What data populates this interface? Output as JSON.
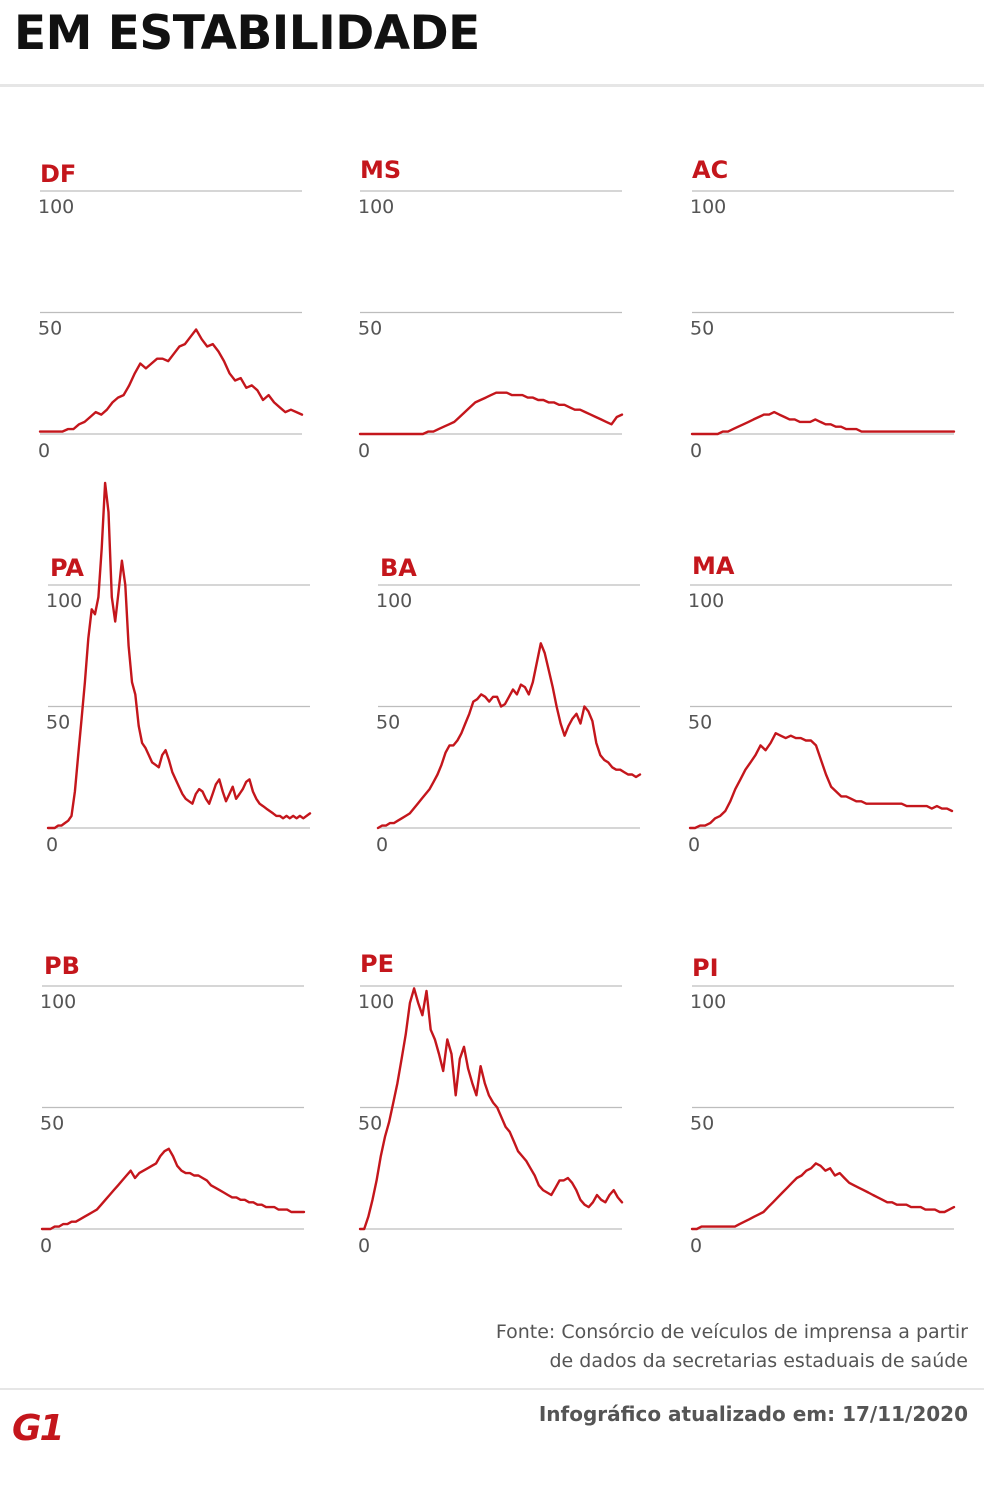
{
  "title": "EM ESTABILIDADE",
  "source": {
    "line1": "Fonte: Consórcio de veículos de imprensa a partir",
    "line2": "de dados da secretarias estaduais de saúde"
  },
  "updated": "Infográfico atualizado em: 17/11/2020",
  "logo": "G1",
  "colors": {
    "line": "#c4161c",
    "label": "#c4161c",
    "grid": "#bdbdbd",
    "text": "#555555",
    "logo": "#c4161c"
  },
  "chart_data": [
    {
      "type": "line",
      "title": "DF",
      "ylim": [
        0,
        100
      ],
      "yticks": [
        0,
        50,
        100
      ],
      "values": [
        1,
        1,
        1,
        1,
        1,
        2,
        2,
        4,
        5,
        7,
        9,
        8,
        10,
        13,
        15,
        16,
        20,
        25,
        29,
        27,
        29,
        31,
        31,
        30,
        33,
        36,
        37,
        40,
        43,
        39,
        36,
        37,
        34,
        30,
        25,
        22,
        23,
        19,
        20,
        18,
        14,
        16,
        13,
        11,
        9,
        10,
        9,
        8
      ]
    },
    {
      "type": "line",
      "title": "MS",
      "ylim": [
        0,
        100
      ],
      "yticks": [
        0,
        50,
        100
      ],
      "values": [
        0,
        0,
        0,
        0,
        0,
        0,
        0,
        0,
        0,
        0,
        0,
        0,
        0,
        1,
        1,
        2,
        3,
        4,
        5,
        7,
        9,
        11,
        13,
        14,
        15,
        16,
        17,
        17,
        17,
        16,
        16,
        16,
        15,
        15,
        14,
        14,
        13,
        13,
        12,
        12,
        11,
        10,
        10,
        9,
        8,
        7,
        6,
        5,
        4,
        7,
        8
      ]
    },
    {
      "type": "line",
      "title": "AC",
      "ylim": [
        0,
        100
      ],
      "yticks": [
        0,
        50,
        100
      ],
      "values": [
        0,
        0,
        0,
        0,
        0,
        0,
        1,
        1,
        2,
        3,
        4,
        5,
        6,
        7,
        8,
        8,
        9,
        8,
        7,
        6,
        6,
        5,
        5,
        5,
        6,
        5,
        4,
        4,
        3,
        3,
        2,
        2,
        2,
        1,
        1,
        1,
        1,
        1,
        1,
        1,
        1,
        1,
        1,
        1,
        1,
        1,
        1,
        1,
        1,
        1,
        1,
        1
      ]
    },
    {
      "type": "line",
      "title": "PA",
      "ylim": [
        0,
        100
      ],
      "yticks": [
        0,
        50,
        100
      ],
      "values": [
        0,
        0,
        0,
        1,
        1,
        2,
        3,
        5,
        15,
        30,
        45,
        60,
        78,
        90,
        88,
        95,
        115,
        142,
        130,
        95,
        85,
        97,
        110,
        100,
        75,
        60,
        55,
        42,
        35,
        33,
        30,
        27,
        26,
        25,
        30,
        32,
        28,
        23,
        20,
        17,
        14,
        12,
        11,
        10,
        14,
        16,
        15,
        12,
        10,
        14,
        18,
        20,
        15,
        11,
        14,
        17,
        12,
        14,
        16,
        19,
        20,
        15,
        12,
        10,
        9,
        8,
        7,
        6,
        5,
        5,
        4,
        5,
        4,
        5,
        4,
        5,
        4,
        5,
        6
      ]
    },
    {
      "type": "line",
      "title": "BA",
      "ylim": [
        0,
        100
      ],
      "yticks": [
        0,
        50,
        100
      ],
      "values": [
        0,
        1,
        1,
        2,
        2,
        3,
        4,
        5,
        6,
        8,
        10,
        12,
        14,
        16,
        19,
        22,
        26,
        31,
        34,
        34,
        36,
        39,
        43,
        47,
        52,
        53,
        55,
        54,
        52,
        54,
        54,
        50,
        51,
        54,
        57,
        55,
        59,
        58,
        55,
        60,
        68,
        76,
        72,
        65,
        58,
        50,
        43,
        38,
        42,
        45,
        47,
        43,
        50,
        48,
        44,
        35,
        30,
        28,
        27,
        25,
        24,
        24,
        23,
        22,
        22,
        21,
        22
      ]
    },
    {
      "type": "line",
      "title": "MA",
      "ylim": [
        0,
        100
      ],
      "yticks": [
        0,
        50,
        100
      ],
      "values": [
        0,
        0,
        1,
        1,
        2,
        4,
        5,
        7,
        11,
        16,
        20,
        24,
        27,
        30,
        34,
        32,
        35,
        39,
        38,
        37,
        38,
        37,
        37,
        36,
        36,
        34,
        28,
        22,
        17,
        15,
        13,
        13,
        12,
        11,
        11,
        10,
        10,
        10,
        10,
        10,
        10,
        10,
        10,
        9,
        9,
        9,
        9,
        9,
        8,
        9,
        8,
        8,
        7
      ]
    },
    {
      "type": "line",
      "title": "PB",
      "ylim": [
        0,
        100
      ],
      "yticks": [
        0,
        50,
        100
      ],
      "values": [
        0,
        0,
        0,
        1,
        1,
        2,
        2,
        3,
        3,
        4,
        5,
        6,
        7,
        8,
        10,
        12,
        14,
        16,
        18,
        20,
        22,
        24,
        21,
        23,
        24,
        25,
        26,
        27,
        30,
        32,
        33,
        30,
        26,
        24,
        23,
        23,
        22,
        22,
        21,
        20,
        18,
        17,
        16,
        15,
        14,
        13,
        13,
        12,
        12,
        11,
        11,
        10,
        10,
        9,
        9,
        9,
        8,
        8,
        8,
        7,
        7,
        7,
        7
      ]
    },
    {
      "type": "line",
      "title": "PE",
      "ylim": [
        0,
        100
      ],
      "yticks": [
        0,
        50,
        100
      ],
      "values": [
        0,
        0,
        5,
        12,
        20,
        30,
        38,
        44,
        52,
        60,
        70,
        80,
        93,
        99,
        93,
        88,
        98,
        82,
        78,
        72,
        65,
        78,
        72,
        55,
        70,
        75,
        66,
        60,
        55,
        67,
        60,
        55,
        52,
        50,
        46,
        42,
        40,
        36,
        32,
        30,
        28,
        25,
        22,
        18,
        16,
        15,
        14,
        17,
        20,
        20,
        21,
        19,
        16,
        12,
        10,
        9,
        11,
        14,
        12,
        11,
        14,
        16,
        13,
        11
      ]
    },
    {
      "type": "line",
      "title": "PI",
      "ylim": [
        0,
        100
      ],
      "yticks": [
        0,
        50,
        100
      ],
      "values": [
        0,
        0,
        1,
        1,
        1,
        1,
        1,
        1,
        1,
        1,
        2,
        3,
        4,
        5,
        6,
        7,
        9,
        11,
        13,
        15,
        17,
        19,
        21,
        22,
        24,
        25,
        27,
        26,
        24,
        25,
        22,
        23,
        21,
        19,
        18,
        17,
        16,
        15,
        14,
        13,
        12,
        11,
        11,
        10,
        10,
        10,
        9,
        9,
        9,
        8,
        8,
        8,
        7,
        7,
        8,
        9
      ]
    }
  ]
}
